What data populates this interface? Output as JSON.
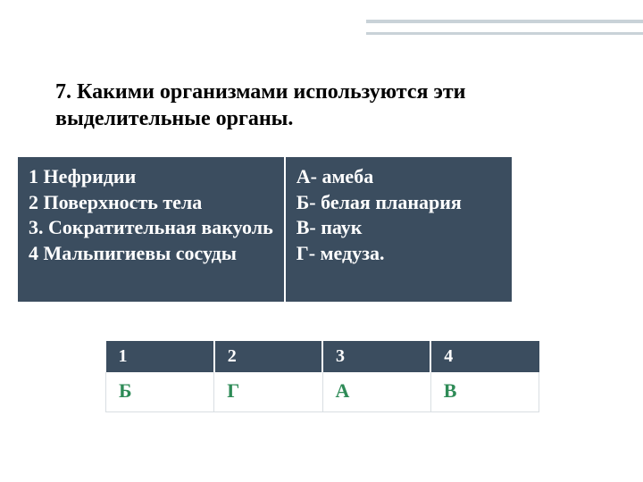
{
  "heading": {
    "line1": "7. Какими организмами используются эти",
    "line2": "выделительные органы."
  },
  "match_table": {
    "left": [
      "1 Нефридии",
      "2 Поверхность тела",
      " 3. Сократительная вакуоль",
      "4 Мальпигиевы сосуды"
    ],
    "right": [
      "А- амеба",
      "Б- белая планария",
      "В- паук",
      "Г- медуза."
    ]
  },
  "answer_table": {
    "headers": [
      "1",
      "2",
      "3",
      "4"
    ],
    "answers": [
      "Б",
      "Г",
      "А",
      "В"
    ]
  },
  "colors": {
    "table_header_bg": "#3b4d5f",
    "table_header_fg": "#ffffff",
    "answer_fg": "#2e8b57",
    "deco_bar": "#c9d2d8",
    "cell_border": "#d9dee2"
  }
}
